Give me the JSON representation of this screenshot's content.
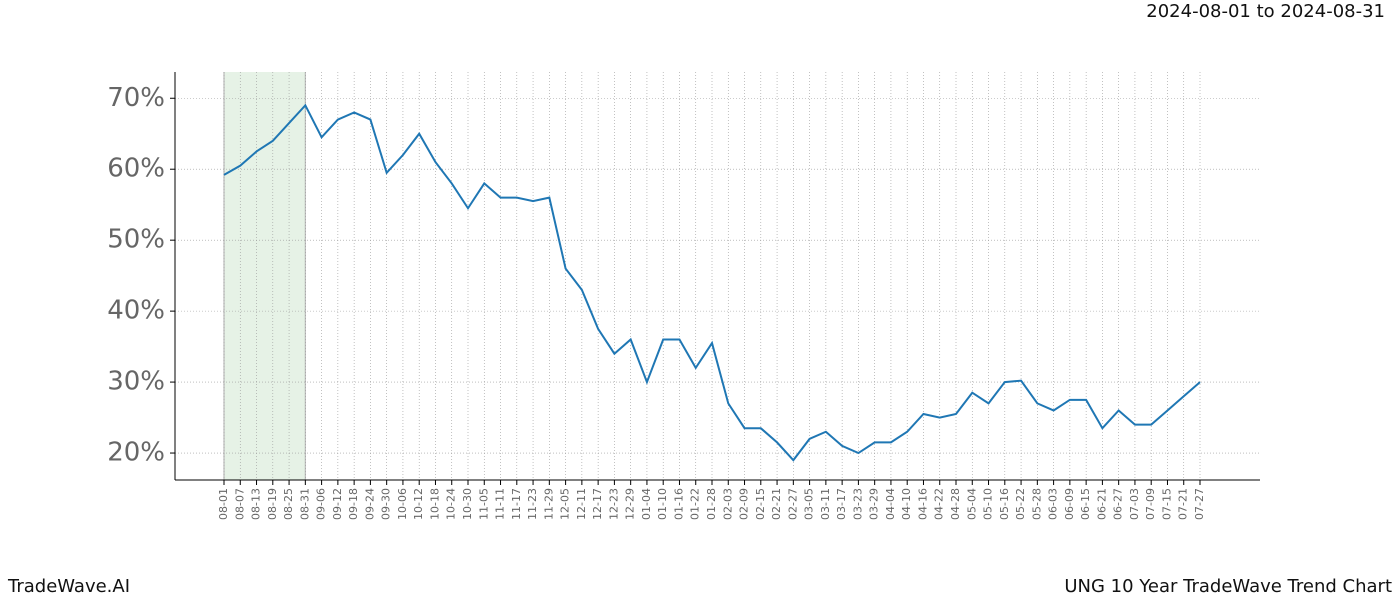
{
  "chart_data": {
    "type": "line",
    "title": "UNG 10 Year TradeWave Trend Chart",
    "subtitle": "2024-08-01 to 2024-08-31",
    "brand": "TradeWave.AI",
    "categories": [
      "08-01",
      "08-07",
      "08-13",
      "08-19",
      "08-25",
      "08-31",
      "09-06",
      "09-12",
      "09-18",
      "09-24",
      "09-30",
      "10-06",
      "10-12",
      "10-18",
      "10-24",
      "10-30",
      "11-05",
      "11-11",
      "11-17",
      "11-23",
      "11-29",
      "12-05",
      "12-11",
      "12-17",
      "12-23",
      "12-29",
      "01-04",
      "01-10",
      "01-16",
      "01-22",
      "01-28",
      "02-03",
      "02-09",
      "02-15",
      "02-21",
      "02-27",
      "03-05",
      "03-11",
      "03-17",
      "03-23",
      "03-29",
      "04-04",
      "04-10",
      "04-16",
      "04-22",
      "04-28",
      "05-04",
      "05-10",
      "05-16",
      "05-22",
      "05-28",
      "06-03",
      "06-09",
      "06-15",
      "06-21",
      "06-27",
      "07-03",
      "07-09",
      "07-15",
      "07-21",
      "07-27"
    ],
    "series": [
      {
        "name": "UNG",
        "color": "#1f77b4",
        "values": [
          59.2,
          60.5,
          62.5,
          64,
          66.5,
          69,
          64.5,
          67,
          68,
          67,
          59.5,
          62,
          65,
          61,
          58,
          54.5,
          58,
          56,
          56,
          55.5,
          56,
          46,
          43,
          37.5,
          34,
          36,
          30,
          36,
          36,
          32,
          35.5,
          27,
          23.5,
          23.5,
          21.5,
          19,
          22,
          23,
          21,
          20,
          21.5,
          21.5,
          23,
          25.5,
          25,
          25.5,
          28.5,
          27,
          30,
          30.2,
          27,
          26,
          27.5,
          27.5,
          23.5,
          26,
          24,
          24,
          26,
          28,
          30
        ]
      }
    ],
    "highlight": [
      "08-01",
      "08-31"
    ],
    "highlight_color": "#e6f2e6",
    "ylim": [
      16.2,
      73.7
    ],
    "yticks": [
      {
        "value": 20,
        "label": "20%"
      },
      {
        "value": 30,
        "label": "30%"
      },
      {
        "value": 40,
        "label": "40%"
      },
      {
        "value": 50,
        "label": "50%"
      },
      {
        "value": 60,
        "label": "60%"
      },
      {
        "value": 70,
        "label": "70%"
      }
    ],
    "grid": true
  }
}
